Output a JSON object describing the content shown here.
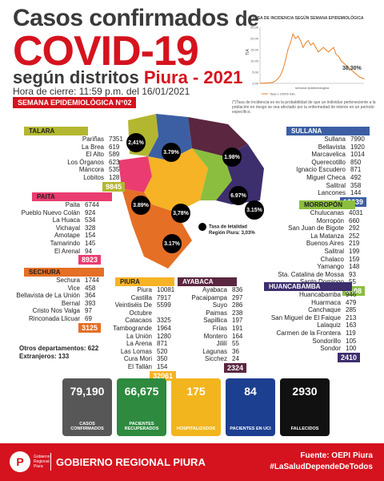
{
  "header": {
    "line1": "Casos confirmados",
    "line1_suffix": "de",
    "line2": "COVID-19",
    "line3_a": "según distritos",
    "line3_b": "Piura - 2021",
    "cierre": "Hora de cierre: 11:59 p.m. del 16/01/2021",
    "semana": "SEMANA EPIDEMIOLÓGICA N°02"
  },
  "chart": {
    "title": "TASA DE INCIDENCIA SEGÚN SEMANA EPIDEMIOLÓGICA",
    "ylabel": "TIA",
    "xlabel": "semana epidemiologica",
    "legend": "Tasa x 10000 hab.",
    "pct_label": "38,30%",
    "y_ticks": [
      "25.00",
      "20.00",
      "15.00",
      "10.00",
      "5.00",
      "0.00"
    ],
    "values": [
      0.1,
      0.1,
      0.1,
      0.2,
      0.3,
      0.5,
      1.0,
      2.0,
      3.5,
      6,
      10,
      15,
      18,
      22,
      20,
      21,
      19,
      16,
      18,
      19,
      17,
      18,
      16,
      14,
      15,
      16,
      15,
      14,
      15,
      16,
      13,
      12,
      10,
      9,
      8,
      7,
      6,
      5,
      4,
      3,
      2.5,
      2
    ]
  },
  "footnote": "(*)Tasa de incidencia es es la probabilidad de que un individuo perteneciente a la población en riesgo se vea afectado por la enfermedad de interés en un período específico.",
  "provinces": {
    "talara": {
      "name": "TALARA",
      "color": "#b3b730",
      "total": "9845",
      "rows": [
        [
          "Pariñas",
          "7351"
        ],
        [
          "La Brea",
          "619"
        ],
        [
          "El Alto",
          "589"
        ],
        [
          "Los Órganos",
          "623"
        ],
        [
          "Máncora",
          "535"
        ],
        [
          "Lobitos",
          "128"
        ]
      ]
    },
    "paita": {
      "name": "PAITA",
      "color": "#ea3c70",
      "total": "8923",
      "rows": [
        [
          "Paita",
          "6744"
        ],
        [
          "Pueblo Nuevo Colán",
          "924"
        ],
        [
          "La Huaca",
          "534"
        ],
        [
          "Vichayal",
          "328"
        ],
        [
          "Amotape",
          "154"
        ],
        [
          "Tamarindo",
          "145"
        ],
        [
          "El Arenal",
          "94"
        ]
      ]
    },
    "sechura": {
      "name": "SECHURA",
      "color": "#e56f25",
      "total": "3125",
      "rows": [
        [
          "Sechura",
          "1744"
        ],
        [
          "Vice",
          "458"
        ],
        [
          "Bellavista de La Unión",
          "364"
        ],
        [
          "Bernal",
          "393"
        ],
        [
          "Cristo Nos Valga",
          "97"
        ],
        [
          "Rinconada Llicuar",
          "69"
        ]
      ]
    },
    "piura": {
      "name": "PIURA",
      "color": "#f6b325",
      "total": "32061",
      "rows": [
        [
          "Piura",
          "10081"
        ],
        [
          "Castilla",
          "7917"
        ],
        [
          "Veintiséis De Octubre",
          "5599"
        ],
        [
          "Catacaos",
          "3325"
        ],
        [
          "Tambogrande",
          "1964"
        ],
        [
          "La Unión",
          "1280"
        ],
        [
          "La Arena",
          "871"
        ],
        [
          "Las Lomas",
          "520"
        ],
        [
          "Cura Mori",
          "350"
        ],
        [
          "El Tallán",
          "154"
        ]
      ]
    },
    "ayabaca": {
      "name": "AYABACA",
      "color": "#5a2640",
      "total": "2324",
      "rows": [
        [
          "Ayabaca",
          "836"
        ],
        [
          "Pacaipampa",
          "297"
        ],
        [
          "Suyo",
          "286"
        ],
        [
          "Paimas",
          "238"
        ],
        [
          "Sapillica",
          "197"
        ],
        [
          "Frías",
          "191"
        ],
        [
          "Montero",
          "164"
        ],
        [
          "Jililí",
          "55"
        ],
        [
          "Lagunas",
          "36"
        ],
        [
          "Sicchez",
          "24"
        ]
      ]
    },
    "sullana": {
      "name": "SULLANA",
      "color": "#3c5fa3",
      "total": "13639",
      "rows": [
        [
          "Sullana",
          "7990"
        ],
        [
          "Bellavista",
          "1920"
        ],
        [
          "Marcavelica",
          "1014"
        ],
        [
          "Querecotillo",
          "850"
        ],
        [
          "Ignacio Escudero",
          "871"
        ],
        [
          "Miguel Checa",
          "492"
        ],
        [
          "Salitral",
          "358"
        ],
        [
          "Lancones",
          "144"
        ]
      ]
    },
    "morropon": {
      "name": "MORROPÓN",
      "color": "#8bbe3e",
      "total": "6108",
      "rows": [
        [
          "Chulucanas",
          "4031"
        ],
        [
          "Morropón",
          "660"
        ],
        [
          "San Juan de Bigote",
          "292"
        ],
        [
          "La Matanza",
          "252"
        ],
        [
          "Buenos Aires",
          "219"
        ],
        [
          "Salitral",
          "199"
        ],
        [
          "Chalaco",
          "159"
        ],
        [
          "Yamango",
          "148"
        ],
        [
          "Sta. Catalina de Mossa",
          "93"
        ],
        [
          "Santo Domingo",
          "55"
        ]
      ]
    },
    "huancabamba": {
      "name": "HUANCABAMBA",
      "color": "#3d2e6e",
      "total": "2410",
      "rows": [
        [
          "Huancabamba",
          "946"
        ],
        [
          "Huarmaca",
          "479"
        ],
        [
          "Canchaque",
          "285"
        ],
        [
          "San Miguel de El Faique",
          "213"
        ],
        [
          "Lalaquiz",
          "163"
        ],
        [
          "Carmen de la Frontera",
          "119"
        ],
        [
          "Sondorillo",
          "105"
        ],
        [
          "Sondor",
          "100"
        ]
      ]
    }
  },
  "map": {
    "labels": [
      "2,41%",
      "3.79%",
      "1.98%",
      "3.89%",
      "3,78%",
      "6.97%",
      "3.15%",
      "3.17%"
    ],
    "letalidad_1": "Tasa de letalidad",
    "letalidad_2": "Región Piura: 3,03%"
  },
  "otros": {
    "line1": "Otros departamentos: 622",
    "line2": "Extranjeros: 133"
  },
  "stats": [
    {
      "value": "79,190",
      "label": "CASOS CONFIRMADOS",
      "color": "#575757"
    },
    {
      "value": "66,675",
      "label": "PACIENTES RECUPERADOS",
      "color": "#2d8a3e"
    },
    {
      "value": "175",
      "label": "HOSPITALIZADOS",
      "color": "#f2b51e"
    },
    {
      "value": "84",
      "label": "PACIENTES EN UCI",
      "color": "#1d3f8f"
    },
    {
      "value": "2930",
      "label": "FALLECIDOS",
      "color": "#111111"
    }
  ],
  "footer": {
    "logo_letter": "P",
    "logo_sub": "Gobierno Regional Piura",
    "org": "GOBIERNO REGIONAL PIURA",
    "fuente": "Fuente: OEPI Piura",
    "hashtag": "#LaSaludDependeDeTodos"
  }
}
